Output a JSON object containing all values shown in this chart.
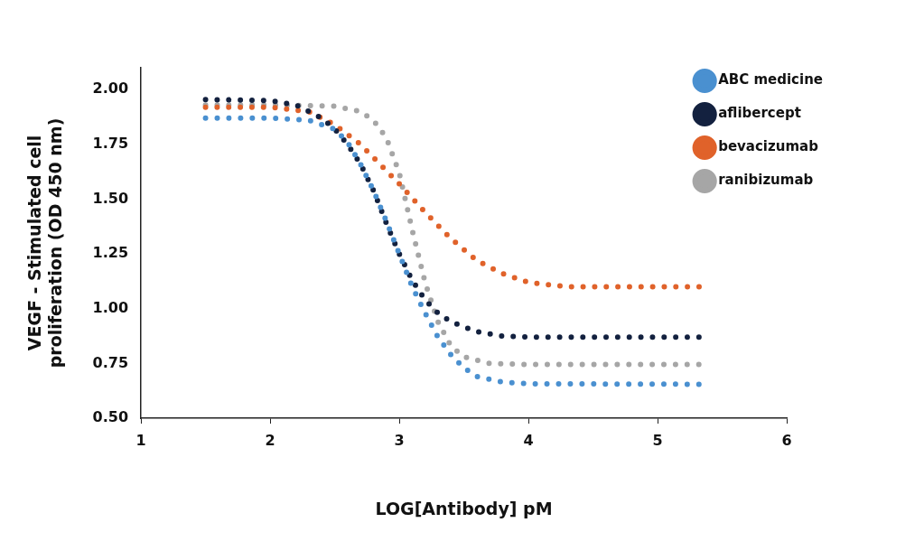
{
  "chart_data": {
    "type": "line",
    "xlabel": "LOG[Antibody] pM",
    "ylabel": "VEGF - Stimulated cell proliferation (OD 450 nm)",
    "xlim": [
      1,
      6
    ],
    "xticks": [
      1,
      2,
      3,
      4,
      5,
      6
    ],
    "ylim": [
      0.5,
      2.1
    ],
    "yticks": [
      {
        "value": 0.5,
        "label": "0.50"
      },
      {
        "value": 0.75,
        "label": "0.75"
      },
      {
        "value": 1.0,
        "label": "1.00"
      },
      {
        "value": 1.25,
        "label": "1.25"
      },
      {
        "value": 1.5,
        "label": "1.50"
      },
      {
        "value": 1.75,
        "label": "1.75"
      },
      {
        "value": 2.0,
        "label": "2.00"
      }
    ],
    "grid": false,
    "legend": "top right",
    "marker": "none",
    "line_style": "dotted",
    "series": [
      {
        "name": "ABC medicine",
        "color": "#4a90d0",
        "x": [
          1.5,
          2.0,
          2.3,
          2.5,
          2.6,
          2.7,
          2.8,
          2.9,
          3.0,
          3.1,
          3.2,
          3.3,
          3.4,
          3.5,
          3.6,
          3.8,
          4.0,
          5.33
        ],
        "values": [
          1.87,
          1.87,
          1.86,
          1.82,
          1.76,
          1.66,
          1.54,
          1.4,
          1.25,
          1.1,
          0.98,
          0.87,
          0.79,
          0.73,
          0.69,
          0.665,
          0.657,
          0.655
        ]
      },
      {
        "name": "aflibercept",
        "color": "#13213f",
        "x": [
          1.5,
          2.0,
          2.2,
          2.4,
          2.5,
          2.6,
          2.7,
          2.8,
          2.9,
          3.0,
          3.1,
          3.2,
          3.3,
          3.4,
          3.6,
          3.8,
          4.0,
          5.33
        ],
        "values": [
          1.955,
          1.95,
          1.93,
          1.87,
          1.82,
          1.75,
          1.66,
          1.54,
          1.39,
          1.25,
          1.13,
          1.04,
          0.98,
          0.94,
          0.895,
          0.875,
          0.87,
          0.87
        ]
      },
      {
        "name": "bevacizumab",
        "color": "#e0622a",
        "x": [
          1.5,
          2.0,
          2.3,
          2.5,
          2.7,
          2.9,
          3.0,
          3.2,
          3.4,
          3.6,
          3.8,
          4.0,
          4.3,
          5.33
        ],
        "values": [
          1.92,
          1.92,
          1.9,
          1.84,
          1.75,
          1.63,
          1.57,
          1.44,
          1.32,
          1.22,
          1.16,
          1.12,
          1.1,
          1.1
        ]
      },
      {
        "name": "ranibizumab",
        "color": "#a6a6a6",
        "x": [
          1.5,
          2.0,
          2.5,
          2.7,
          2.8,
          2.9,
          3.0,
          3.1,
          3.2,
          3.3,
          3.4,
          3.5,
          3.7,
          4.0,
          5.33
        ],
        "values": [
          1.93,
          1.93,
          1.925,
          1.9,
          1.86,
          1.78,
          1.62,
          1.36,
          1.12,
          0.94,
          0.83,
          0.78,
          0.75,
          0.745,
          0.745
        ]
      }
    ]
  }
}
